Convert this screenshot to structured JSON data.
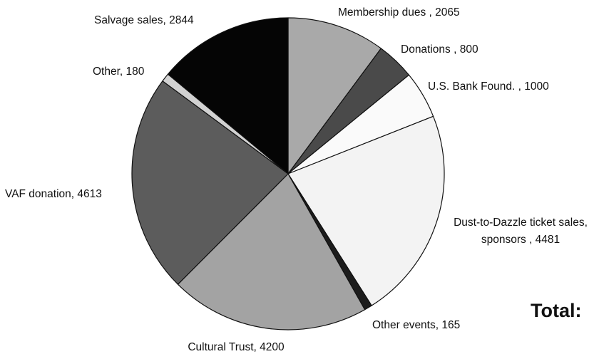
{
  "chart_data": {
    "type": "pie",
    "slices": [
      {
        "label": "Membership dues",
        "value": 2065,
        "color": "#a9a9a9",
        "label_lines": [
          "Membership dues , 2065"
        ]
      },
      {
        "label": "Donations",
        "value": 800,
        "color": "#4a4a4a",
        "label_lines": [
          "Donations , 800"
        ]
      },
      {
        "label": "U.S. Bank Found.",
        "value": 1000,
        "color": "#fafafa",
        "label_lines": [
          "U.S. Bank Found. , 1000"
        ]
      },
      {
        "label": "Dust-to-Dazzle ticket sales, sponsors",
        "value": 4481,
        "color": "#f3f3f3",
        "label_lines": [
          "Dust-to-Dazzle ticket sales,",
          "sponsors , 4481"
        ]
      },
      {
        "label": "Other events",
        "value": 165,
        "color": "#1c1c1c",
        "label_lines": [
          "Other events, 165"
        ]
      },
      {
        "label": "Cultural Trust",
        "value": 4200,
        "color": "#a3a3a3",
        "label_lines": [
          "Cultural Trust, 4200"
        ]
      },
      {
        "label": "VAF donation",
        "value": 4613,
        "color": "#5c5c5c",
        "label_lines": [
          "VAF donation, 4613"
        ]
      },
      {
        "label": "Other",
        "value": 180,
        "color": "#d2d2d2",
        "label_lines": [
          "Other, 180"
        ]
      },
      {
        "label": "Salvage sales",
        "value": 2844,
        "color": "#050505",
        "label_lines": [
          "Salvage sales, 2844"
        ]
      }
    ],
    "start_angle_deg": 0,
    "direction": "clockwise",
    "legend": "none",
    "total_label": "Total:"
  }
}
